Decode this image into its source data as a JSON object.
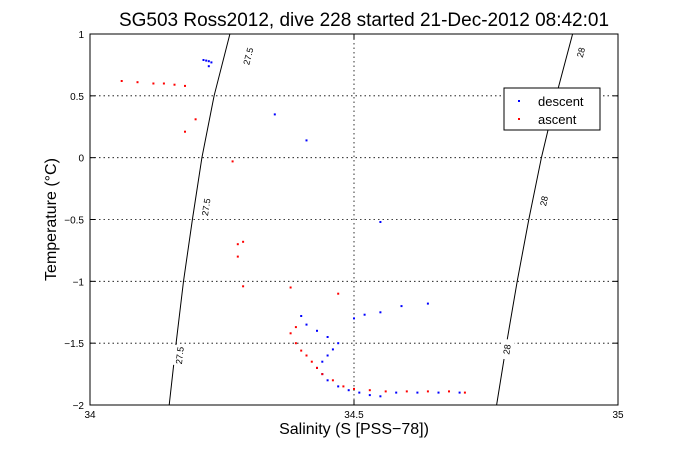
{
  "chart_data": {
    "type": "scatter",
    "title": "SG503 Ross2012, dive 228 started 21-Dec-2012 08:42:01",
    "xlabel": "Salinity (S [PSS−78])",
    "ylabel": "Temperature (°C)",
    "xlim": [
      34,
      35
    ],
    "ylim": [
      -2,
      1
    ],
    "x_ticks": [
      "34",
      "34.5",
      "35"
    ],
    "y_ticks": [
      "1",
      "0.5",
      "0",
      "−0.5",
      "−1",
      "−1.5",
      "−2"
    ],
    "grid": true,
    "legend_position": "top-right",
    "density_contours": [
      {
        "label": "27.5",
        "points": [
          [
            34.15,
            -2.0
          ],
          [
            34.163,
            -1.5
          ],
          [
            34.177,
            -1.0
          ],
          [
            34.194,
            -0.5
          ],
          [
            34.212,
            0.0
          ],
          [
            34.235,
            0.5
          ],
          [
            34.265,
            1.0
          ]
        ],
        "label_positions": [
          [
            34.17,
            -1.6
          ],
          [
            34.22,
            -0.4
          ],
          [
            34.3,
            0.82
          ]
        ]
      },
      {
        "label": "28",
        "points": [
          [
            34.77,
            -2.0
          ],
          [
            34.789,
            -1.5
          ],
          [
            34.809,
            -1.0
          ],
          [
            34.831,
            -0.5
          ],
          [
            34.855,
            0.0
          ],
          [
            34.883,
            0.5
          ],
          [
            34.914,
            1.0
          ]
        ],
        "label_positions": [
          [
            34.79,
            -1.55
          ],
          [
            34.86,
            -0.35
          ],
          [
            34.93,
            0.85
          ]
        ]
      }
    ],
    "series": [
      {
        "name": "descent",
        "color": "#0000ff",
        "points": [
          [
            34.215,
            0.79
          ],
          [
            34.22,
            0.785
          ],
          [
            34.225,
            0.78
          ],
          [
            34.23,
            0.77
          ],
          [
            34.225,
            0.74
          ],
          [
            34.35,
            0.35
          ],
          [
            34.41,
            0.14
          ],
          [
            34.55,
            -0.52
          ],
          [
            34.5,
            -1.3
          ],
          [
            34.52,
            -1.27
          ],
          [
            34.55,
            -1.25
          ],
          [
            34.59,
            -1.2
          ],
          [
            34.64,
            -1.18
          ],
          [
            34.4,
            -1.28
          ],
          [
            34.41,
            -1.35
          ],
          [
            34.43,
            -1.4
          ],
          [
            34.45,
            -1.45
          ],
          [
            34.47,
            -1.5
          ],
          [
            34.46,
            -1.55
          ],
          [
            34.45,
            -1.6
          ],
          [
            34.44,
            -1.65
          ],
          [
            34.43,
            -1.7
          ],
          [
            34.44,
            -1.75
          ],
          [
            34.45,
            -1.8
          ],
          [
            34.47,
            -1.85
          ],
          [
            34.49,
            -1.88
          ],
          [
            34.51,
            -1.9
          ],
          [
            34.53,
            -1.92
          ],
          [
            34.55,
            -1.93
          ],
          [
            34.58,
            -1.9
          ],
          [
            34.62,
            -1.9
          ],
          [
            34.66,
            -1.9
          ],
          [
            34.7,
            -1.9
          ]
        ]
      },
      {
        "name": "ascent",
        "color": "#ff0000",
        "points": [
          [
            34.06,
            0.62
          ],
          [
            34.09,
            0.61
          ],
          [
            34.12,
            0.6
          ],
          [
            34.14,
            0.6
          ],
          [
            34.16,
            0.59
          ],
          [
            34.18,
            0.58
          ],
          [
            34.2,
            0.31
          ],
          [
            34.18,
            0.21
          ],
          [
            34.27,
            -0.03
          ],
          [
            34.28,
            -0.7
          ],
          [
            34.29,
            -0.68
          ],
          [
            34.28,
            -0.8
          ],
          [
            34.29,
            -1.04
          ],
          [
            34.38,
            -1.05
          ],
          [
            34.47,
            -1.1
          ],
          [
            34.39,
            -1.37
          ],
          [
            34.38,
            -1.42
          ],
          [
            34.39,
            -1.5
          ],
          [
            34.4,
            -1.56
          ],
          [
            34.41,
            -1.6
          ],
          [
            34.42,
            -1.65
          ],
          [
            34.43,
            -1.7
          ],
          [
            34.44,
            -1.75
          ],
          [
            34.46,
            -1.8
          ],
          [
            34.48,
            -1.85
          ],
          [
            34.5,
            -1.87
          ],
          [
            34.53,
            -1.88
          ],
          [
            34.56,
            -1.89
          ],
          [
            34.6,
            -1.89
          ],
          [
            34.64,
            -1.89
          ],
          [
            34.68,
            -1.89
          ],
          [
            34.71,
            -1.9
          ]
        ]
      }
    ]
  }
}
